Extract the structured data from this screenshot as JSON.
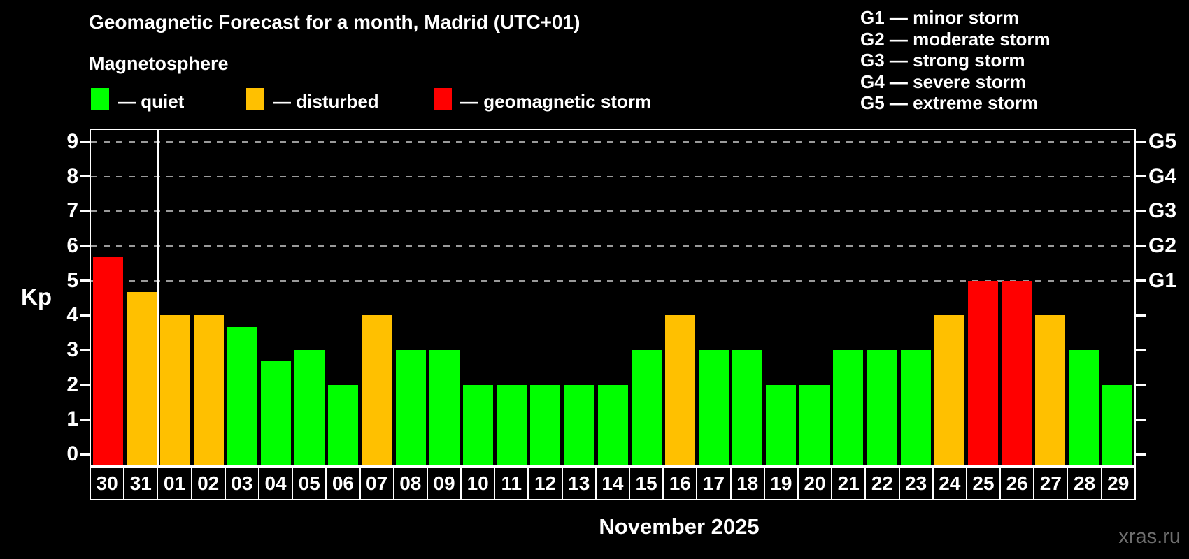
{
  "title": "Geomagnetic Forecast for a month, Madrid (UTC+01)",
  "subtitle": "Magnetosphere",
  "status_legend": [
    {
      "label": "— quiet",
      "status": "quiet"
    },
    {
      "label": "— disturbed",
      "status": "disturbed"
    },
    {
      "label": "— geomagnetic storm",
      "status": "storm"
    }
  ],
  "g_scale_legend": {
    "line1": "G1 — minor storm",
    "line2": "G2 — moderate storm",
    "line3": "G3 — strong storm",
    "line4": "G4 — severe storm",
    "line5": "G5 — extreme storm"
  },
  "colors": {
    "quiet": "#00ff00",
    "disturbed": "#ffc000",
    "storm": "#ff0000",
    "background": "#000000",
    "text": "#ffffff",
    "gridline": "#9a9a9a",
    "watermark": "#6e6e6e"
  },
  "chart_data": {
    "type": "bar",
    "title": "Geomagnetic Forecast for a month, Madrid (UTC+01)",
    "ylabel": "Kp",
    "xlabel": "November 2025",
    "ylim": [
      0,
      9
    ],
    "grid": "horizontal dashed gridlines at Kp 5,6,7,8,9 only",
    "left_ticks": [
      "0",
      "1",
      "2",
      "3",
      "4",
      "5",
      "6",
      "7",
      "8",
      "9"
    ],
    "right_axis_labels": [
      {
        "kp": 5,
        "label": "G1"
      },
      {
        "kp": 6,
        "label": "G2"
      },
      {
        "kp": 7,
        "label": "G3"
      },
      {
        "kp": 8,
        "label": "G4"
      },
      {
        "kp": 9,
        "label": "G5"
      }
    ],
    "month_boundary_after_index": 1,
    "categories": [
      "30",
      "31",
      "01",
      "02",
      "03",
      "04",
      "05",
      "06",
      "07",
      "08",
      "09",
      "10",
      "11",
      "12",
      "13",
      "14",
      "15",
      "16",
      "17",
      "18",
      "19",
      "20",
      "21",
      "22",
      "23",
      "24",
      "25",
      "26",
      "27",
      "28",
      "29"
    ],
    "values": [
      5.67,
      4.67,
      4,
      4,
      3.67,
      2.67,
      3,
      2,
      4,
      3,
      3,
      2,
      2,
      2,
      2,
      2,
      3,
      4,
      3,
      3,
      2,
      2,
      3,
      3,
      3,
      4,
      5,
      5,
      4,
      3,
      2
    ],
    "statuses": [
      "storm",
      "disturbed",
      "disturbed",
      "disturbed",
      "quiet",
      "quiet",
      "quiet",
      "quiet",
      "disturbed",
      "quiet",
      "quiet",
      "quiet",
      "quiet",
      "quiet",
      "quiet",
      "quiet",
      "quiet",
      "disturbed",
      "quiet",
      "quiet",
      "quiet",
      "quiet",
      "quiet",
      "quiet",
      "quiet",
      "disturbed",
      "storm",
      "storm",
      "disturbed",
      "quiet",
      "quiet"
    ]
  },
  "footer": {
    "xlabel": "November 2025",
    "watermark": "xras.ru"
  }
}
